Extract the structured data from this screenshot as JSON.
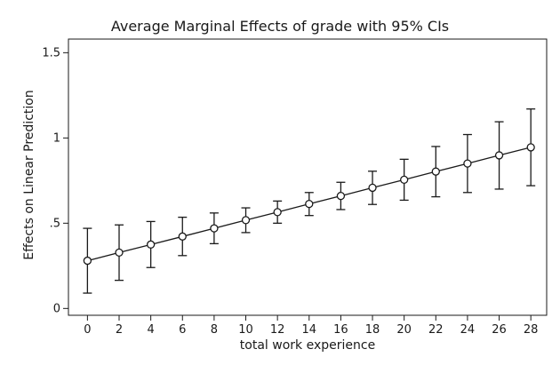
{
  "chart_data": {
    "type": "scatter",
    "title": "Average Marginal Effects of grade with 95% CIs",
    "xlabel": "total work experience",
    "ylabel": "Effects on Linear Prediction",
    "xlim": [
      -1.2,
      29
    ],
    "ylim": [
      -0.04,
      1.58
    ],
    "x_ticks": [
      0,
      2,
      4,
      6,
      8,
      10,
      12,
      14,
      16,
      18,
      20,
      22,
      24,
      26,
      28
    ],
    "x_tick_labels": [
      "0",
      "2",
      "4",
      "6",
      "8",
      "10",
      "12",
      "14",
      "16",
      "18",
      "20",
      "22",
      "24",
      "26",
      "28"
    ],
    "y_ticks": [
      0,
      0.5,
      1,
      1.5
    ],
    "y_tick_labels": [
      "0",
      ".5",
      "1",
      "1.5"
    ],
    "grid": false,
    "legend": "none",
    "series": [
      {
        "x": [
          0,
          2,
          4,
          6,
          8,
          10,
          12,
          14,
          16,
          18,
          20,
          22,
          24,
          26,
          28
        ],
        "y": [
          0.28,
          0.328,
          0.375,
          0.422,
          0.47,
          0.518,
          0.565,
          0.613,
          0.66,
          0.708,
          0.755,
          0.803,
          0.85,
          0.898,
          0.945
        ],
        "ci_lower": [
          0.09,
          0.165,
          0.24,
          0.31,
          0.38,
          0.445,
          0.5,
          0.545,
          0.58,
          0.61,
          0.635,
          0.655,
          0.68,
          0.7,
          0.72
        ],
        "ci_upper": [
          0.47,
          0.49,
          0.51,
          0.535,
          0.56,
          0.59,
          0.63,
          0.68,
          0.74,
          0.805,
          0.875,
          0.95,
          1.02,
          1.095,
          1.17
        ],
        "color": "#1a1a1a"
      }
    ]
  }
}
